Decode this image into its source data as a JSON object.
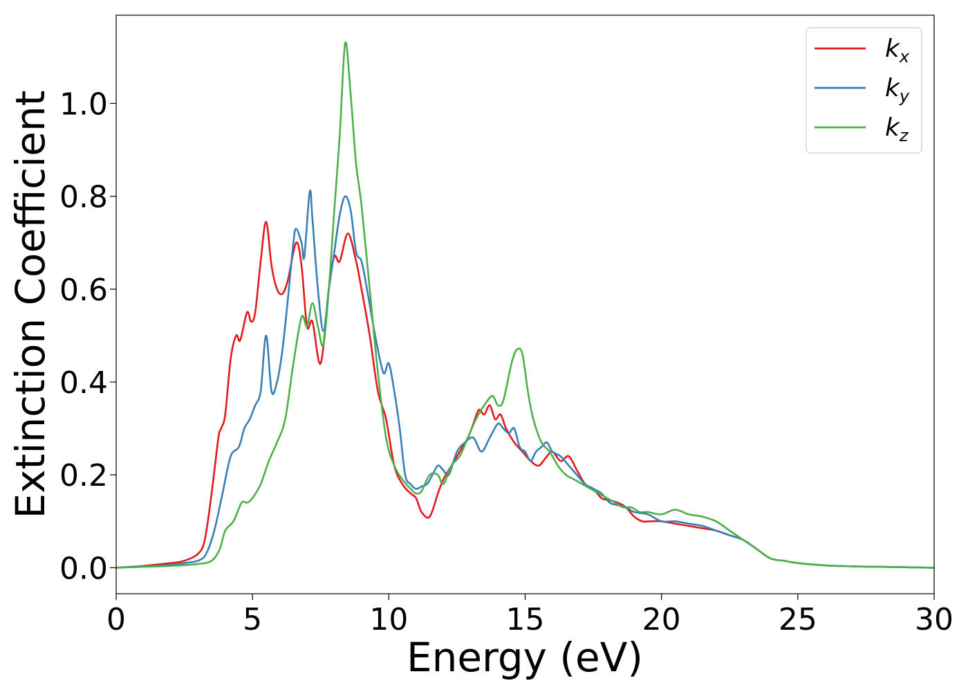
{
  "chart_data": {
    "type": "line",
    "title": "",
    "xlabel": "Energy (eV)",
    "ylabel": "Extinction Coefficient",
    "xlim": [
      0,
      30
    ],
    "ylim": [
      -0.056,
      1.19
    ],
    "xticks": [
      0,
      5,
      10,
      15,
      20,
      25,
      30
    ],
    "xtick_labels": [
      "0",
      "5",
      "10",
      "15",
      "20",
      "25",
      "30"
    ],
    "yticks": [
      0.0,
      0.2,
      0.4,
      0.6,
      0.8,
      1.0
    ],
    "ytick_labels": [
      "0.0",
      "0.2",
      "0.4",
      "0.6",
      "0.8",
      "1.0"
    ],
    "grid": false,
    "legend": {
      "position": "top-right",
      "entries": [
        {
          "base": "k",
          "sub": "x"
        },
        {
          "base": "k",
          "sub": "y"
        },
        {
          "base": "k",
          "sub": "z"
        }
      ]
    },
    "series": [
      {
        "name": "k_x",
        "color": "#e31a1c",
        "x": [
          0,
          1,
          2,
          2.5,
          3,
          3.25,
          3.5,
          3.75,
          3.85,
          4.0,
          4.2,
          4.4,
          4.55,
          4.8,
          4.95,
          5.1,
          5.3,
          5.5,
          5.7,
          5.9,
          6.1,
          6.3,
          6.6,
          6.8,
          7.0,
          7.2,
          7.5,
          7.8,
          8.0,
          8.2,
          8.5,
          8.8,
          9.0,
          9.3,
          9.6,
          9.9,
          10.2,
          10.5,
          10.8,
          11.0,
          11.2,
          11.5,
          11.8,
          12.0,
          12.3,
          12.6,
          12.9,
          13.1,
          13.3,
          13.5,
          13.7,
          13.9,
          14.1,
          14.3,
          14.6,
          14.9,
          15.2,
          15.5,
          15.8,
          16.0,
          16.3,
          16.6,
          16.9,
          17.2,
          17.5,
          17.8,
          18.1,
          18.4,
          18.7,
          19.0,
          19.3,
          19.6,
          20.0,
          20.5,
          21.0,
          21.5,
          22.0,
          22.5,
          23.0,
          23.5,
          24.0,
          24.5,
          25.0,
          26.0,
          27.0,
          28.0,
          30.0
        ],
        "y": [
          0.0,
          0.004,
          0.01,
          0.015,
          0.03,
          0.06,
          0.16,
          0.28,
          0.3,
          0.33,
          0.45,
          0.5,
          0.49,
          0.55,
          0.53,
          0.55,
          0.66,
          0.745,
          0.65,
          0.6,
          0.59,
          0.62,
          0.7,
          0.65,
          0.52,
          0.53,
          0.44,
          0.6,
          0.67,
          0.66,
          0.72,
          0.66,
          0.6,
          0.5,
          0.38,
          0.32,
          0.22,
          0.18,
          0.16,
          0.15,
          0.12,
          0.11,
          0.16,
          0.19,
          0.22,
          0.25,
          0.28,
          0.31,
          0.34,
          0.33,
          0.35,
          0.32,
          0.33,
          0.3,
          0.27,
          0.25,
          0.23,
          0.22,
          0.24,
          0.25,
          0.23,
          0.24,
          0.21,
          0.18,
          0.17,
          0.15,
          0.145,
          0.14,
          0.13,
          0.11,
          0.1,
          0.1,
          0.1,
          0.095,
          0.09,
          0.085,
          0.08,
          0.07,
          0.06,
          0.04,
          0.02,
          0.015,
          0.01,
          0.005,
          0.003,
          0.002,
          0.0
        ]
      },
      {
        "name": "k_y",
        "color": "#377eb8",
        "x": [
          0,
          1,
          2,
          2.5,
          3,
          3.3,
          3.6,
          3.9,
          4.2,
          4.5,
          4.7,
          4.9,
          5.1,
          5.3,
          5.5,
          5.7,
          5.9,
          6.1,
          6.3,
          6.5,
          6.6,
          6.8,
          6.9,
          7.1,
          7.2,
          7.4,
          7.6,
          7.8,
          8.0,
          8.2,
          8.4,
          8.6,
          8.8,
          9.0,
          9.2,
          9.5,
          9.8,
          10.0,
          10.2,
          10.4,
          10.6,
          10.8,
          11.0,
          11.2,
          11.4,
          11.6,
          11.8,
          12.0,
          12.2,
          12.5,
          12.8,
          13.1,
          13.4,
          13.7,
          14.0,
          14.2,
          14.4,
          14.6,
          14.8,
          15.0,
          15.2,
          15.4,
          15.6,
          15.8,
          16.0,
          16.3,
          16.6,
          16.9,
          17.2,
          17.5,
          17.8,
          18.1,
          18.4,
          18.7,
          19.0,
          19.5,
          20.0,
          20.5,
          21.0,
          21.5,
          22.0,
          22.5,
          23.0,
          23.5,
          24.0,
          24.5,
          25.0,
          26.0,
          27.0,
          28.0,
          30.0
        ],
        "y": [
          0.0,
          0.003,
          0.006,
          0.01,
          0.015,
          0.03,
          0.08,
          0.16,
          0.24,
          0.26,
          0.3,
          0.32,
          0.35,
          0.38,
          0.5,
          0.38,
          0.4,
          0.47,
          0.58,
          0.7,
          0.73,
          0.7,
          0.67,
          0.81,
          0.75,
          0.6,
          0.51,
          0.6,
          0.68,
          0.76,
          0.8,
          0.77,
          0.68,
          0.66,
          0.6,
          0.5,
          0.42,
          0.44,
          0.38,
          0.3,
          0.2,
          0.18,
          0.17,
          0.175,
          0.18,
          0.2,
          0.22,
          0.21,
          0.2,
          0.25,
          0.27,
          0.28,
          0.25,
          0.28,
          0.31,
          0.3,
          0.29,
          0.3,
          0.26,
          0.25,
          0.23,
          0.25,
          0.26,
          0.27,
          0.25,
          0.24,
          0.22,
          0.2,
          0.18,
          0.17,
          0.16,
          0.14,
          0.135,
          0.13,
          0.12,
          0.115,
          0.1,
          0.1,
          0.095,
          0.09,
          0.08,
          0.07,
          0.06,
          0.04,
          0.02,
          0.015,
          0.01,
          0.005,
          0.003,
          0.002,
          0.0
        ]
      },
      {
        "name": "k_z",
        "color": "#4daf4a",
        "x": [
          0,
          1,
          2,
          3,
          3.5,
          3.8,
          4.0,
          4.3,
          4.6,
          4.8,
          5.0,
          5.3,
          5.6,
          5.9,
          6.2,
          6.5,
          6.8,
          7.0,
          7.2,
          7.4,
          7.6,
          7.8,
          8.0,
          8.2,
          8.4,
          8.6,
          8.8,
          9.0,
          9.3,
          9.6,
          9.9,
          10.2,
          10.5,
          10.8,
          11.0,
          11.2,
          11.5,
          11.8,
          12.0,
          12.3,
          12.6,
          12.9,
          13.2,
          13.5,
          13.8,
          14.0,
          14.2,
          14.5,
          14.7,
          14.9,
          15.1,
          15.3,
          15.6,
          15.9,
          16.2,
          16.5,
          16.8,
          17.1,
          17.4,
          17.7,
          18.0,
          18.3,
          18.6,
          18.9,
          19.2,
          19.5,
          20.0,
          20.5,
          21.0,
          21.5,
          22.0,
          22.5,
          23.0,
          23.5,
          24.0,
          24.5,
          25.0,
          26.0,
          27.0,
          28.0,
          30.0
        ],
        "y": [
          0.0,
          0.002,
          0.004,
          0.008,
          0.015,
          0.04,
          0.08,
          0.1,
          0.14,
          0.14,
          0.15,
          0.18,
          0.23,
          0.27,
          0.32,
          0.44,
          0.54,
          0.52,
          0.57,
          0.52,
          0.48,
          0.6,
          0.77,
          0.93,
          1.13,
          1.02,
          0.87,
          0.78,
          0.6,
          0.42,
          0.28,
          0.22,
          0.19,
          0.17,
          0.16,
          0.165,
          0.2,
          0.2,
          0.18,
          0.22,
          0.24,
          0.28,
          0.32,
          0.35,
          0.37,
          0.35,
          0.36,
          0.44,
          0.47,
          0.46,
          0.38,
          0.32,
          0.27,
          0.25,
          0.22,
          0.2,
          0.19,
          0.18,
          0.17,
          0.16,
          0.15,
          0.14,
          0.13,
          0.13,
          0.12,
          0.12,
          0.115,
          0.125,
          0.115,
          0.11,
          0.1,
          0.08,
          0.06,
          0.04,
          0.02,
          0.015,
          0.01,
          0.005,
          0.003,
          0.002,
          0.0
        ]
      }
    ]
  }
}
